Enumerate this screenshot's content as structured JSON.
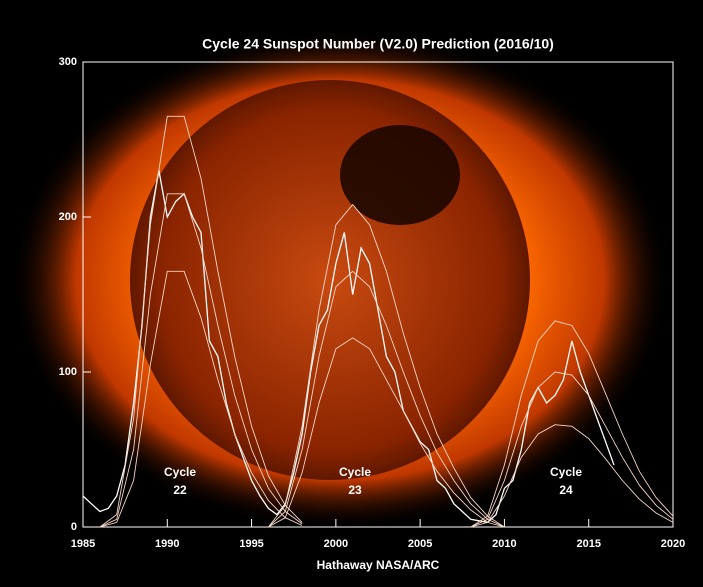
{
  "chart_data": {
    "type": "line",
    "title": "Cycle 24 Sunspot Number (V2.0) Prediction (2016/10)",
    "x_label": "Hathaway  NASA/ARC",
    "annotations": [
      [
        "Cycle",
        "22"
      ],
      [
        "Cycle",
        "23"
      ],
      [
        "Cycle",
        "24"
      ]
    ],
    "xlim": [
      1985,
      2020
    ],
    "xticks": [
      1985,
      1990,
      1995,
      2000,
      2005,
      2010,
      2015,
      2020
    ],
    "ylim": [
      0,
      300
    ],
    "yticks": [
      0,
      100,
      200,
      300
    ],
    "series": [
      {
        "color": "#ffffff",
        "x": [
          1985,
          1985.5,
          1986,
          1986.5,
          1987,
          1987.5,
          1988,
          1988.5,
          1989,
          1989.5,
          1990,
          1990.5,
          1991,
          1991.5,
          1992,
          1992.5,
          1993,
          1993.5,
          1994,
          1994.5,
          1995,
          1995.5,
          1996,
          1996.5,
          1997,
          1997.5,
          1998,
          1998.5,
          1999,
          1999.5,
          2000,
          2000.5,
          2001,
          2001.5,
          2002,
          2002.5,
          2003,
          2003.5,
          2004,
          2004.5,
          2005,
          2005.5,
          2006,
          2006.5,
          2007,
          2007.5,
          2008,
          2008.5,
          2009,
          2009.5,
          2010,
          2010.5,
          2011,
          2011.5,
          2012,
          2012.5,
          2013,
          2013.5,
          2014,
          2014.5,
          2015,
          2015.5,
          2016,
          2016.5
        ],
        "values": [
          20,
          15,
          10,
          12,
          20,
          40,
          80,
          130,
          200,
          230,
          200,
          210,
          215,
          200,
          190,
          120,
          110,
          80,
          60,
          45,
          30,
          20,
          12,
          8,
          15,
          35,
          60,
          100,
          130,
          140,
          170,
          190,
          150,
          180,
          170,
          140,
          110,
          100,
          75,
          65,
          55,
          50,
          30,
          25,
          15,
          10,
          5,
          4,
          3,
          8,
          25,
          30,
          50,
          80,
          90,
          80,
          85,
          95,
          120,
          100,
          85,
          70,
          55,
          40
        ]
      },
      {
        "color": "#f5d6c6",
        "x": [
          1986,
          1987,
          1988,
          1989,
          1990,
          1991,
          1992,
          1993,
          1994,
          1995,
          1996,
          1997,
          1998
        ],
        "values": [
          0,
          5,
          50,
          150,
          215,
          215,
          180,
          130,
          85,
          50,
          25,
          10,
          2
        ]
      },
      {
        "color": "#f5d6c6",
        "x": [
          1986,
          1987,
          1988,
          1989,
          1990,
          1991,
          1992,
          1993,
          1994,
          1995,
          1996,
          1997,
          1998
        ],
        "values": [
          0,
          8,
          70,
          195,
          265,
          265,
          225,
          165,
          110,
          65,
          33,
          14,
          3
        ]
      },
      {
        "color": "#f5d6c6",
        "x": [
          1986,
          1987,
          1988,
          1989,
          1990,
          1991,
          1992,
          1993,
          1994,
          1995,
          1996,
          1997,
          1998
        ],
        "values": [
          0,
          3,
          30,
          105,
          165,
          165,
          135,
          95,
          60,
          35,
          17,
          6,
          1
        ]
      },
      {
        "color": "#f5d6c6",
        "x": [
          1996,
          1997,
          1998,
          1999,
          2000,
          2001,
          2002,
          2003,
          2004,
          2005,
          2006,
          2007,
          2008,
          2009,
          2010
        ],
        "values": [
          0,
          10,
          50,
          110,
          155,
          165,
          155,
          130,
          100,
          72,
          48,
          30,
          15,
          5,
          0
        ]
      },
      {
        "color": "#f5d6c6",
        "x": [
          1996,
          1997,
          1998,
          1999,
          2000,
          2001,
          2002,
          2003,
          2004,
          2005,
          2006,
          2007,
          2008,
          2009,
          2010
        ],
        "values": [
          0,
          14,
          65,
          140,
          195,
          208,
          195,
          165,
          125,
          90,
          60,
          38,
          19,
          7,
          0
        ]
      },
      {
        "color": "#f5d6c6",
        "x": [
          1996,
          1997,
          1998,
          1999,
          2000,
          2001,
          2002,
          2003,
          2004,
          2005,
          2006,
          2007,
          2008,
          2009,
          2010
        ],
        "values": [
          0,
          6,
          35,
          80,
          115,
          122,
          115,
          95,
          75,
          54,
          36,
          22,
          11,
          3,
          0
        ]
      },
      {
        "color": "#f5d6c6",
        "x": [
          2008,
          2009,
          2010,
          2011,
          2012,
          2013,
          2014,
          2015,
          2016,
          2017,
          2018,
          2019,
          2020
        ],
        "values": [
          0,
          5,
          30,
          65,
          90,
          100,
          98,
          85,
          65,
          45,
          27,
          14,
          5
        ]
      },
      {
        "color": "#f5d6c6",
        "x": [
          2008,
          2009,
          2010,
          2011,
          2012,
          2013,
          2014,
          2015,
          2016,
          2017,
          2018,
          2019,
          2020
        ],
        "values": [
          0,
          7,
          40,
          85,
          120,
          133,
          130,
          112,
          86,
          60,
          36,
          19,
          7
        ]
      },
      {
        "color": "#f5d6c6",
        "x": [
          2008,
          2009,
          2010,
          2011,
          2012,
          2013,
          2014,
          2015,
          2016,
          2017,
          2018,
          2019,
          2020
        ],
        "values": [
          0,
          3,
          20,
          45,
          60,
          66,
          65,
          57,
          44,
          30,
          18,
          9,
          3
        ]
      }
    ]
  }
}
